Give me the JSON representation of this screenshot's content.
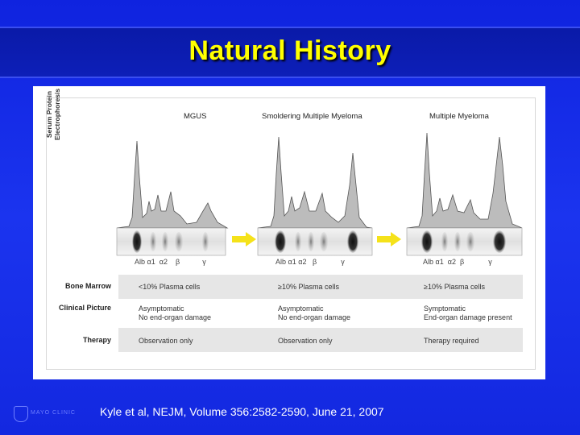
{
  "slide": {
    "title": "Natural History",
    "citation": "Kyle et al, NEJM, Volume 356:2582-2590, June 21, 2007",
    "logo_text": "MAYO CLINIC"
  },
  "figure": {
    "y_axis_label_line1": "Serum Protein",
    "y_axis_label_line2": "Electrophoresis",
    "panels": [
      {
        "title": "MGUS",
        "axis": [
          "Alb",
          "α1",
          "α2",
          "β",
          "γ"
        ]
      },
      {
        "title": "Smoldering Multiple Myeloma",
        "axis": [
          "Alb",
          "α1",
          "α2",
          "β",
          "γ"
        ]
      },
      {
        "title": "Multiple Myeloma",
        "axis": [
          "Alb",
          "α1",
          "α2",
          "β",
          "γ"
        ]
      }
    ],
    "rows": [
      {
        "label": "Bone Marrow",
        "cells": [
          "<10% Plasma cells",
          "≥10% Plasma cells",
          "≥10% Plasma cells"
        ]
      },
      {
        "label": "Clinical Picture",
        "cells": [
          "Asymptomatic\nNo end-organ damage",
          "Asymptomatic\nNo end-organ damage",
          "Symptomatic\nEnd-organ damage present"
        ]
      },
      {
        "label": "Therapy",
        "cells": [
          "Observation only",
          "Observation only",
          "Therapy required"
        ]
      }
    ],
    "colors": {
      "arrow": "#f5e21a",
      "curve_fill": "#bcbcbc",
      "band": "#e6e6e6"
    }
  }
}
